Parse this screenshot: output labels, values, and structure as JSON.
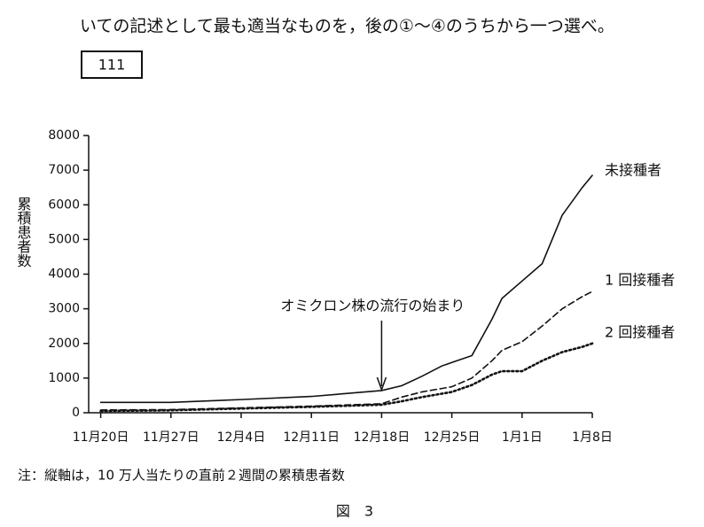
{
  "header": {
    "text": "いての記述として最も適当なものを，後の①～④のうちから一つ選べ。",
    "answer_box": "111"
  },
  "chart_data": {
    "type": "line",
    "ylabel": "累積患者数",
    "annotation": {
      "text": "オミクロン株の流行の始まり",
      "x": 28
    },
    "x": [
      0,
      7,
      14,
      21,
      28,
      30,
      32,
      34,
      35,
      37,
      39,
      40,
      42,
      44,
      46,
      48,
      49
    ],
    "xlim": [
      -1.2,
      49
    ],
    "xticks": [
      {
        "value": 0,
        "label": "11月20日"
      },
      {
        "value": 7,
        "label": "11月27日"
      },
      {
        "value": 14,
        "label": "12月4日"
      },
      {
        "value": 21,
        "label": "12月11日"
      },
      {
        "value": 28,
        "label": "12月18日"
      },
      {
        "value": 35,
        "label": "12月25日"
      },
      {
        "value": 42,
        "label": "1月1日"
      },
      {
        "value": 49,
        "label": "1月8日"
      }
    ],
    "ylim": [
      0,
      8000
    ],
    "yticks": [
      0,
      1000,
      2000,
      3000,
      4000,
      5000,
      6000,
      7000,
      8000
    ],
    "series": [
      {
        "name": "未接種者",
        "color": "#111111",
        "style": "solid",
        "values": [
          300,
          300,
          380,
          470,
          640,
          780,
          1050,
          1350,
          1450,
          1650,
          2700,
          3300,
          3800,
          4300,
          5700,
          6500,
          6850
        ]
      },
      {
        "name": "1 回接種者",
        "color": "#111111",
        "style": "dashed",
        "values": [
          80,
          90,
          140,
          190,
          260,
          450,
          600,
          700,
          750,
          1000,
          1500,
          1800,
          2050,
          2500,
          3000,
          3350,
          3500
        ]
      },
      {
        "name": "2 回接種者",
        "color": "#111111",
        "style": "dotted",
        "values": [
          50,
          70,
          120,
          170,
          230,
          330,
          450,
          550,
          600,
          800,
          1100,
          1200,
          1200,
          1500,
          1750,
          1900,
          2000
        ]
      }
    ]
  },
  "note": "注：縦軸は，10 万人当たりの直前２週間の累積患者数",
  "caption": "図　3"
}
